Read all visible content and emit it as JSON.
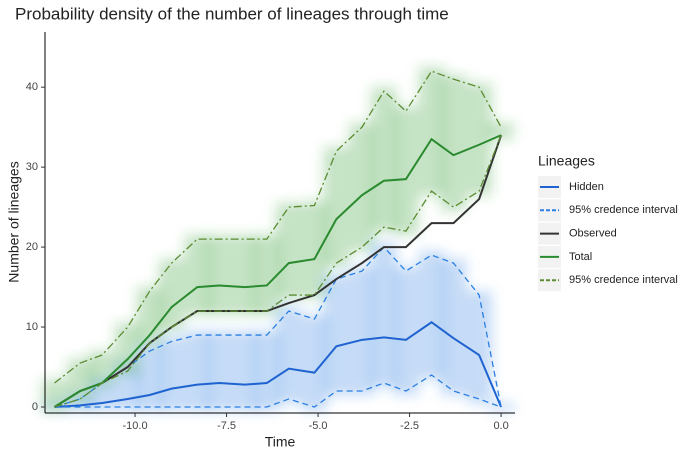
{
  "chart_data": {
    "type": "line",
    "title": "Probability density of the number of lineages through time",
    "x_label": "Time",
    "y_label": "Number of lineages",
    "legend_title": "Lineages",
    "legend_position": "right",
    "x": [
      -12.2,
      -11.5,
      -10.9,
      -10.2,
      -9.6,
      -9.0,
      -8.3,
      -7.7,
      -7.0,
      -6.4,
      -5.8,
      -5.1,
      -4.5,
      -3.8,
      -3.2,
      -2.6,
      -1.9,
      -1.3,
      -0.6,
      0.0
    ],
    "series": [
      {
        "name": "Hidden",
        "color": "#1f63d1",
        "dash": "solid",
        "values": [
          0,
          0.2,
          0.5,
          1,
          1.5,
          2.3,
          2.8,
          3,
          2.8,
          3,
          4.8,
          4.3,
          7.6,
          8.4,
          8.7,
          8.4,
          10.6,
          8.6,
          6.5,
          0
        ]
      },
      {
        "name": "95% credence interval",
        "color": "#2b7fe3",
        "dash": "dashed",
        "shade": "#2b7fe3",
        "lower": [
          0,
          0,
          0,
          0,
          0,
          0,
          0,
          0,
          0,
          0,
          1,
          0,
          2,
          2,
          3,
          2,
          4,
          2,
          1,
          0
        ],
        "upper": [
          0,
          1,
          3,
          5,
          7,
          8.2,
          9,
          9,
          9,
          9,
          12,
          11,
          16,
          17,
          20,
          17,
          19,
          18,
          14,
          0
        ]
      },
      {
        "name": "Observed",
        "color": "#333333",
        "dash": "solid",
        "values": [
          0,
          2,
          3,
          5,
          8,
          10,
          12,
          12,
          12,
          12,
          13,
          14,
          16,
          18,
          20,
          20,
          23,
          23,
          26,
          34
        ]
      },
      {
        "name": "Total",
        "color": "#2a8a2e",
        "dash": "solid",
        "values": [
          0,
          2,
          3,
          6,
          9,
          12.5,
          15,
          15.2,
          15,
          15.2,
          18,
          18.5,
          23.5,
          26.5,
          28.3,
          28.5,
          33.5,
          31.5,
          32.8,
          34
        ]
      },
      {
        "name": "95% credence interval",
        "color": "#5b8c32",
        "dash": "dashdot",
        "shade": "#2f9a2f",
        "lower": [
          0,
          1,
          3,
          4.5,
          8,
          10,
          12,
          12,
          12,
          12,
          14,
          14,
          18,
          20,
          22.5,
          22,
          27,
          25,
          27,
          34
        ],
        "upper": [
          3,
          5.5,
          6.5,
          10,
          14.5,
          18,
          21,
          21,
          21,
          21,
          25,
          25.2,
          32,
          35,
          39.5,
          37,
          42,
          41,
          40,
          35
        ]
      }
    ],
    "xlim": [
      -12.46,
      0.38
    ],
    "ylim": [
      -0.75,
      46.9
    ],
    "xticks": [
      {
        "value": -10,
        "label": "-10.0"
      },
      -7.5,
      {
        "value": -5,
        "label": "-5.0"
      },
      -2.5,
      {
        "value": 0,
        "label": "0.0"
      }
    ],
    "yticks": [
      0,
      10,
      20,
      30,
      40
    ]
  }
}
